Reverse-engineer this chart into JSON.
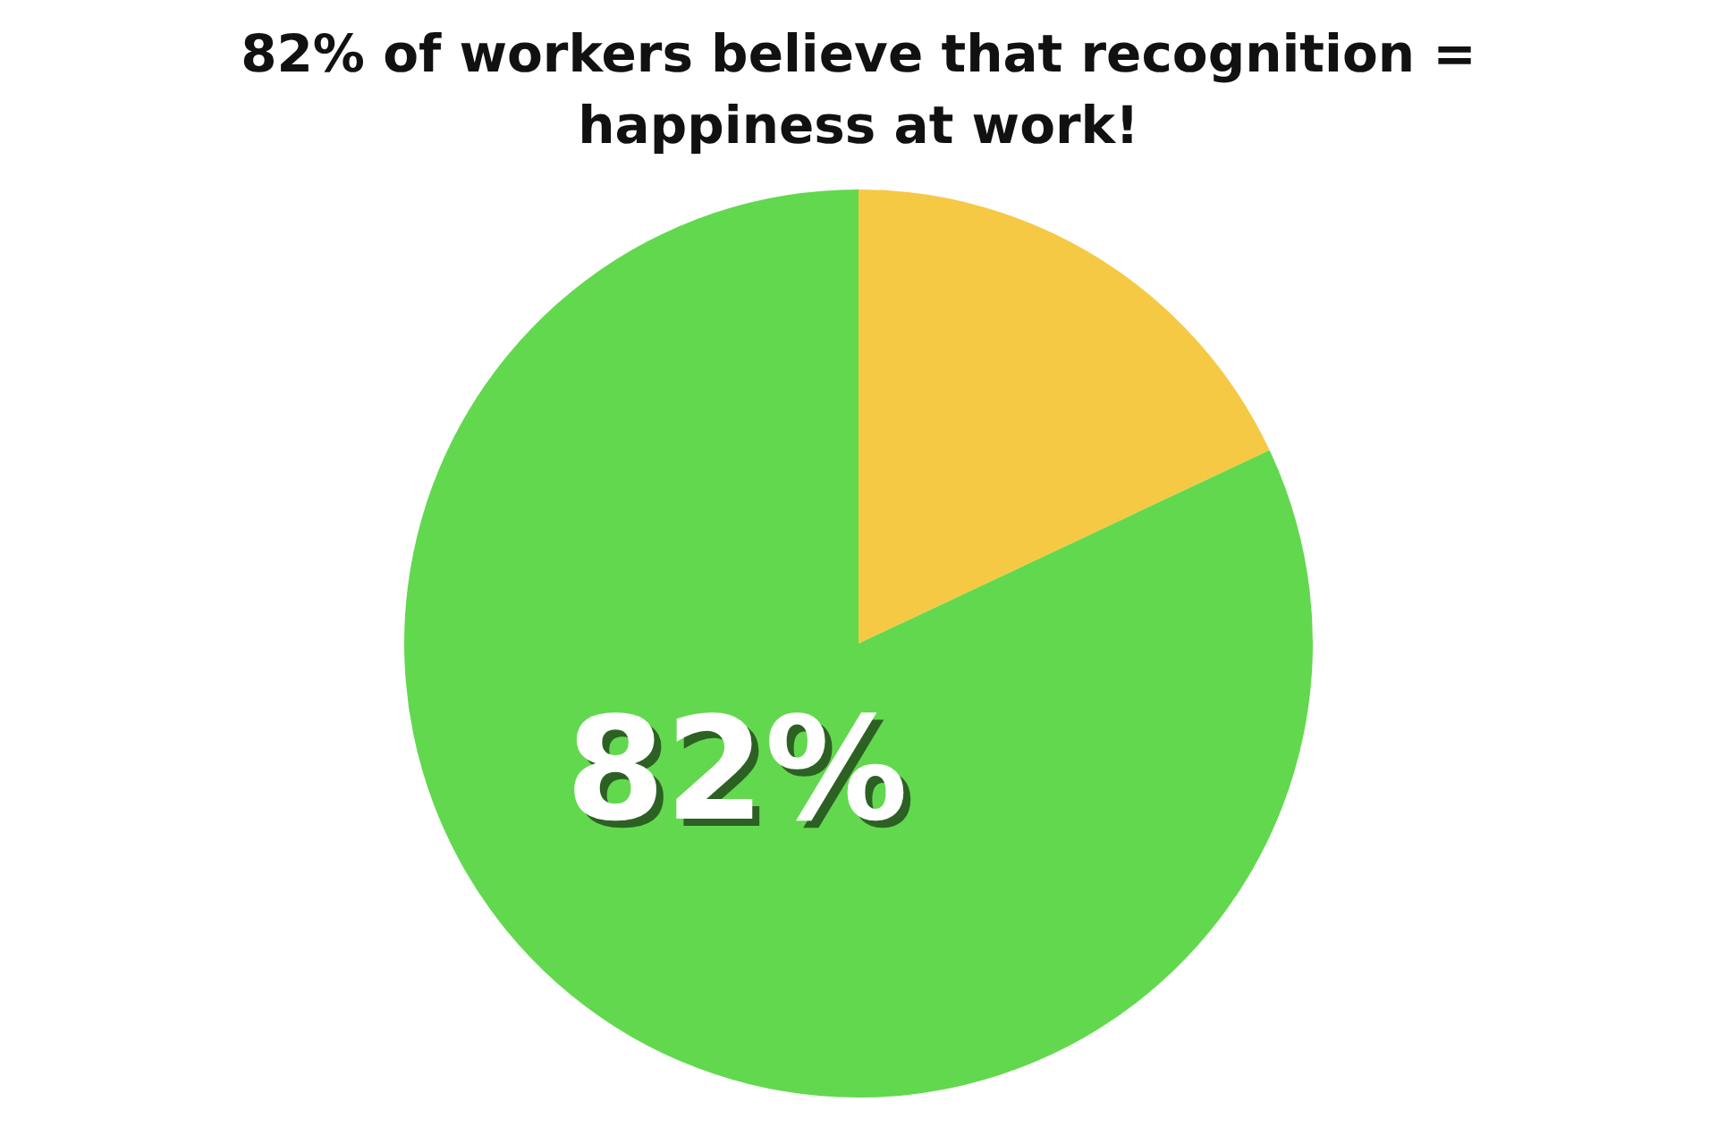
{
  "chart_data": {
    "type": "pie",
    "title": "82% of workers believe that recognition = happiness at work!",
    "categories": [
      null,
      null
    ],
    "values": [
      18,
      82
    ],
    "colors": [
      "#f6c944",
      "#62d84e"
    ],
    "value_labels": [
      null,
      "82%"
    ],
    "legend": false
  }
}
